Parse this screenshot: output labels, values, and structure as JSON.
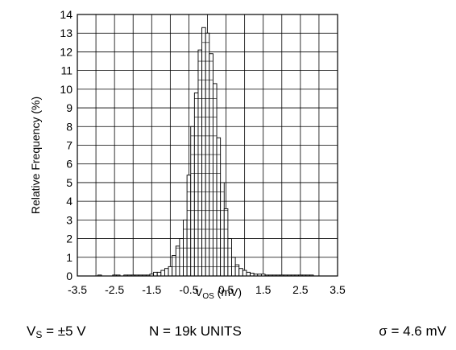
{
  "chart_data": {
    "type": "bar",
    "xlabel_main": "V",
    "xlabel_sub": "OS",
    "xlabel_unit": " (mV)",
    "ylabel": "Relative Frequency (%)",
    "xlim": [
      -3.5,
      3.5
    ],
    "ylim": [
      0,
      14
    ],
    "xticks": [
      "-3.5",
      "-2.5",
      "-1.5",
      "-0.5",
      "0.5",
      "1.5",
      "2.5",
      "3.5"
    ],
    "yticks": [
      "0",
      "1",
      "2",
      "3",
      "4",
      "5",
      "6",
      "7",
      "8",
      "9",
      "10",
      "11",
      "12",
      "13",
      "14"
    ],
    "grid": true,
    "bin_width": 0.1,
    "bin_centers": [
      -2.9,
      -2.5,
      -2.4,
      -2.2,
      -2.1,
      -2.0,
      -1.9,
      -1.8,
      -1.7,
      -1.6,
      -1.5,
      -1.4,
      -1.3,
      -1.2,
      -1.1,
      -1.0,
      -0.9,
      -0.8,
      -0.7,
      -0.6,
      -0.5,
      -0.4,
      -0.3,
      -0.2,
      -0.1,
      0.0,
      0.1,
      0.2,
      0.3,
      0.4,
      0.5,
      0.6,
      0.7,
      0.8,
      0.9,
      1.0,
      1.1,
      1.2,
      1.3,
      1.4,
      1.5,
      1.6,
      1.7,
      1.8,
      1.9,
      2.0,
      2.1,
      2.2,
      2.3,
      2.4,
      2.5,
      2.6,
      2.7,
      2.8
    ],
    "values": [
      0.05,
      0.05,
      0.05,
      0.05,
      0.05,
      0.05,
      0.05,
      0.05,
      0.05,
      0.05,
      0.1,
      0.2,
      0.2,
      0.3,
      0.4,
      0.5,
      1.1,
      1.6,
      2.0,
      3.0,
      5.4,
      8.0,
      9.8,
      12.1,
      13.3,
      13.0,
      11.9,
      10.3,
      7.4,
      5.0,
      3.6,
      2.0,
      1.0,
      0.6,
      0.4,
      0.3,
      0.2,
      0.15,
      0.1,
      0.1,
      0.1,
      0.05,
      0.05,
      0.05,
      0.05,
      0.05,
      0.05,
      0.05,
      0.05,
      0.05,
      0.05,
      0.05,
      0.05,
      0.05
    ]
  },
  "footer": {
    "vs_main": "V",
    "vs_sub": "S",
    "vs_value": " = ±5 V",
    "n_units": "N = 19k UNITS",
    "sigma": "σ = 4.6 mV"
  }
}
